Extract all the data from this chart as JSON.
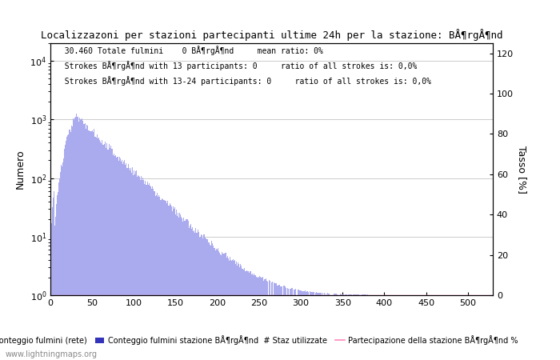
{
  "title": "Localizzazoni per stazioni partecipanti ultime 24h per la stazione: BÅ¶rgÅ¶nd",
  "info_line1": "  30.460 Totale fulmini    0 BÅ¶rgÅ¶nd     mean ratio: 0%",
  "info_line2": "  Strokes BÅ¶rgÅ¶nd with 13 participants: 0     ratio of all strokes is: 0,0%",
  "info_line3": "  Strokes BÅ¶rgÅ¶nd with 13-24 participants: 0     ratio of all strokes is: 0,0%",
  "ylabel_left": "Numero",
  "ylabel_right": "Tasso [%]",
  "legend1": "Conteggio fulmini (rete)",
  "legend2": "Conteggio fulmini stazione BÅ¶rgÅ¶nd",
  "legend3": "# Staz utilizzate",
  "legend4": "Partecipazione della stazione BÅ¶rgÅ¶nd %",
  "watermark": "www.lightningmaps.org",
  "bar_color_light": "#aaaaee",
  "bar_color_dark": "#3333bb",
  "line_color": "#ff88bb",
  "xlim": [
    0,
    530
  ],
  "ylim_right": [
    0,
    125
  ],
  "right_yticks": [
    0,
    20,
    40,
    60,
    80,
    100,
    120
  ],
  "background_color": "#ffffff",
  "grid_color": "#cccccc"
}
